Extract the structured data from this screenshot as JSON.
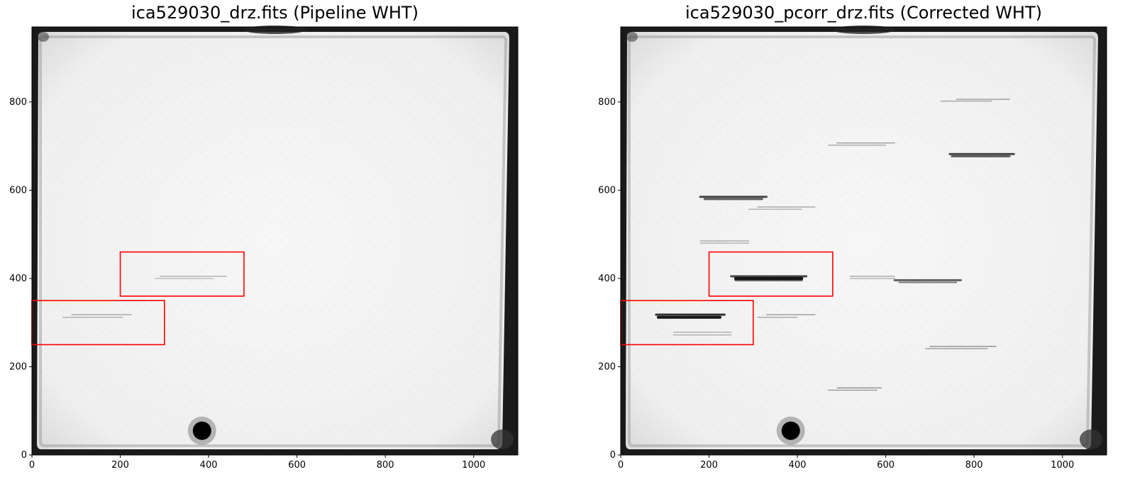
{
  "panels": [
    {
      "title": "ica529030_drz.fits (Pipeline WHT)",
      "xlim": [
        0,
        1100
      ],
      "ylim": [
        0,
        970
      ],
      "xticks": [
        0,
        200,
        400,
        600,
        800,
        1000
      ],
      "yticks": [
        0,
        200,
        400,
        600,
        800
      ],
      "regions": [
        {
          "x": 200,
          "y": 360,
          "w": 280,
          "h": 100
        },
        {
          "x": 0,
          "y": 250,
          "w": 300,
          "h": 100
        }
      ],
      "streaks": [
        {
          "x1": 290,
          "x2": 440,
          "y": 405,
          "op": 0.35
        },
        {
          "x1": 280,
          "x2": 410,
          "y": 400,
          "op": 0.3
        },
        {
          "x1": 90,
          "x2": 225,
          "y": 318,
          "op": 0.35
        },
        {
          "x1": 70,
          "x2": 205,
          "y": 312,
          "op": 0.3
        }
      ],
      "spot": {
        "x": 385,
        "y": 55
      }
    },
    {
      "title": "ica529030_pcorr_drz.fits (Corrected WHT)",
      "xlim": [
        0,
        1100
      ],
      "ylim": [
        0,
        970
      ],
      "xticks": [
        0,
        200,
        400,
        600,
        800,
        1000
      ],
      "yticks": [
        0,
        200,
        400,
        600,
        800
      ],
      "regions": [
        {
          "x": 200,
          "y": 360,
          "w": 280,
          "h": 100
        },
        {
          "x": 0,
          "y": 250,
          "w": 300,
          "h": 100
        }
      ],
      "streaks": [
        {
          "x1": 760,
          "x2": 880,
          "y": 806,
          "op": 0.4
        },
        {
          "x1": 725,
          "x2": 840,
          "y": 802,
          "op": 0.35
        },
        {
          "x1": 490,
          "x2": 620,
          "y": 707,
          "op": 0.4
        },
        {
          "x1": 470,
          "x2": 600,
          "y": 702,
          "op": 0.35
        },
        {
          "x1": 745,
          "x2": 890,
          "y": 682,
          "op": 0.7,
          "w": 3
        },
        {
          "x1": 750,
          "x2": 880,
          "y": 677,
          "op": 0.6,
          "w": 3
        },
        {
          "x1": 180,
          "x2": 330,
          "y": 585,
          "op": 0.7,
          "w": 3
        },
        {
          "x1": 190,
          "x2": 320,
          "y": 580,
          "op": 0.6,
          "w": 3
        },
        {
          "x1": 310,
          "x2": 440,
          "y": 562,
          "op": 0.4
        },
        {
          "x1": 290,
          "x2": 410,
          "y": 557,
          "op": 0.35
        },
        {
          "x1": 180,
          "x2": 290,
          "y": 485,
          "op": 0.35
        },
        {
          "x1": 180,
          "x2": 290,
          "y": 480,
          "op": 0.3
        },
        {
          "x1": 250,
          "x2": 420,
          "y": 405,
          "op": 0.7,
          "w": 3
        },
        {
          "x1": 260,
          "x2": 410,
          "y": 400,
          "op": 0.9,
          "w": 4
        },
        {
          "x1": 260,
          "x2": 410,
          "y": 396,
          "op": 0.6,
          "w": 3
        },
        {
          "x1": 520,
          "x2": 620,
          "y": 405,
          "op": 0.4
        },
        {
          "x1": 520,
          "x2": 620,
          "y": 400,
          "op": 0.35
        },
        {
          "x1": 620,
          "x2": 770,
          "y": 396,
          "op": 0.6,
          "w": 3
        },
        {
          "x1": 630,
          "x2": 760,
          "y": 391,
          "op": 0.5,
          "w": 2
        },
        {
          "x1": 80,
          "x2": 235,
          "y": 318,
          "op": 0.8,
          "w": 3
        },
        {
          "x1": 85,
          "x2": 225,
          "y": 312,
          "op": 0.9,
          "w": 4
        },
        {
          "x1": 330,
          "x2": 440,
          "y": 318,
          "op": 0.4
        },
        {
          "x1": 310,
          "x2": 400,
          "y": 312,
          "op": 0.35
        },
        {
          "x1": 120,
          "x2": 250,
          "y": 278,
          "op": 0.3
        },
        {
          "x1": 120,
          "x2": 250,
          "y": 272,
          "op": 0.3
        },
        {
          "x1": 700,
          "x2": 850,
          "y": 246,
          "op": 0.5
        },
        {
          "x1": 690,
          "x2": 830,
          "y": 241,
          "op": 0.45
        },
        {
          "x1": 490,
          "x2": 590,
          "y": 152,
          "op": 0.45
        },
        {
          "x1": 470,
          "x2": 580,
          "y": 147,
          "op": 0.4
        }
      ],
      "spot": {
        "x": 385,
        "y": 55
      }
    }
  ],
  "colors": {
    "region": "#ff0000",
    "frame": "#000000",
    "field": "#f2f2f2"
  }
}
